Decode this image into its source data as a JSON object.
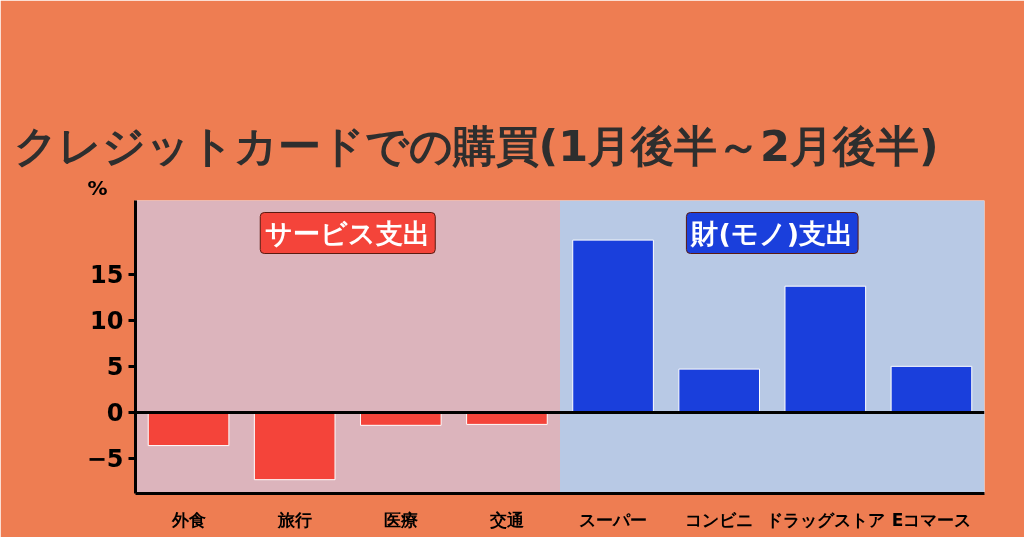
{
  "chart_data": {
    "type": "bar",
    "title": "クレジットカードでの購買(1月後半～2月後半)",
    "ylabel": "%",
    "categories": [
      "外食",
      "旅行",
      "医療",
      "交通",
      "スーパー",
      "コンビニ",
      "ドラッグストア",
      "Eコマース"
    ],
    "values": [
      -3.6,
      -7.3,
      -1.4,
      -1.3,
      18.7,
      4.7,
      13.7,
      5.0
    ],
    "colors": [
      "#f4443a",
      "#f4443a",
      "#f4443a",
      "#f4443a",
      "#1a3fdc",
      "#1a3fdc",
      "#1a3fdc",
      "#1a3fdc"
    ],
    "ylim": [
      -8.8,
      23
    ],
    "yticks": [
      -5,
      0,
      5,
      10,
      15
    ],
    "bands": [
      {
        "axis": "x",
        "from": "外食",
        "to": "交通",
        "label": "サービス支出",
        "color": "#dcb4bc"
      },
      {
        "axis": "x",
        "from": "スーパー",
        "to": "Eコマース",
        "label": "財(モノ)支出",
        "color": "#b8c9e5"
      }
    ]
  }
}
